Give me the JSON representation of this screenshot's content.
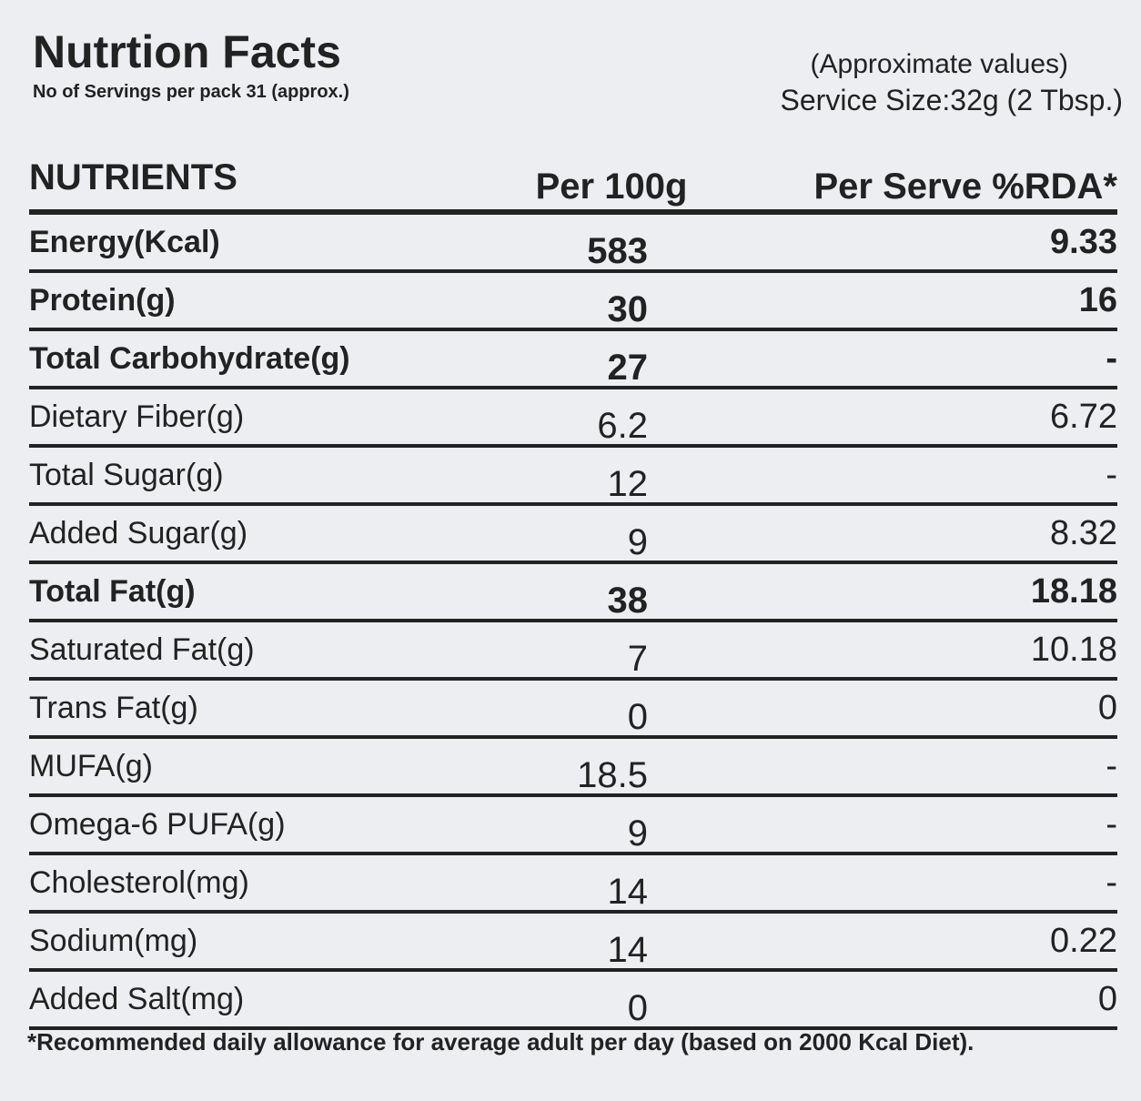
{
  "header": {
    "title": "Nutrtion Facts",
    "servings": "No of Servings per pack 31 (approx.)",
    "note": "(Approximate values)",
    "serving_size": "Service Size:32g (2 Tbsp.)"
  },
  "table": {
    "columns": [
      "NUTRIENTS",
      "Per 100g",
      "Per Serve %RDA*"
    ],
    "rows": [
      [
        "Energy(Kcal)",
        583,
        9.33
      ],
      [
        "Protein(g)",
        30,
        16
      ],
      [
        "Total Carbohydrate(g)",
        27,
        "-"
      ],
      [
        "Dietary Fiber(g)",
        6.2,
        6.72
      ],
      [
        "Total Sugar(g)",
        12,
        "-"
      ],
      [
        "Added Sugar(g)",
        9,
        8.32
      ],
      [
        "Total Fat(g)",
        38,
        18.18
      ],
      [
        "Saturated Fat(g)",
        7,
        10.18
      ],
      [
        "Trans Fat(g)",
        0,
        0
      ],
      [
        "MUFA(g)",
        18.5,
        "-"
      ],
      [
        "Omega-6 PUFA(g)",
        9,
        "-"
      ],
      [
        "Cholesterol(mg)",
        14,
        "-"
      ],
      [
        "Sodium(mg)",
        14,
        0.22
      ],
      [
        "Added Salt(mg)",
        0,
        0
      ]
    ]
  },
  "footnote": "*Recommended daily allowance for average adult per day (based on 2000 Kcal Diet)."
}
